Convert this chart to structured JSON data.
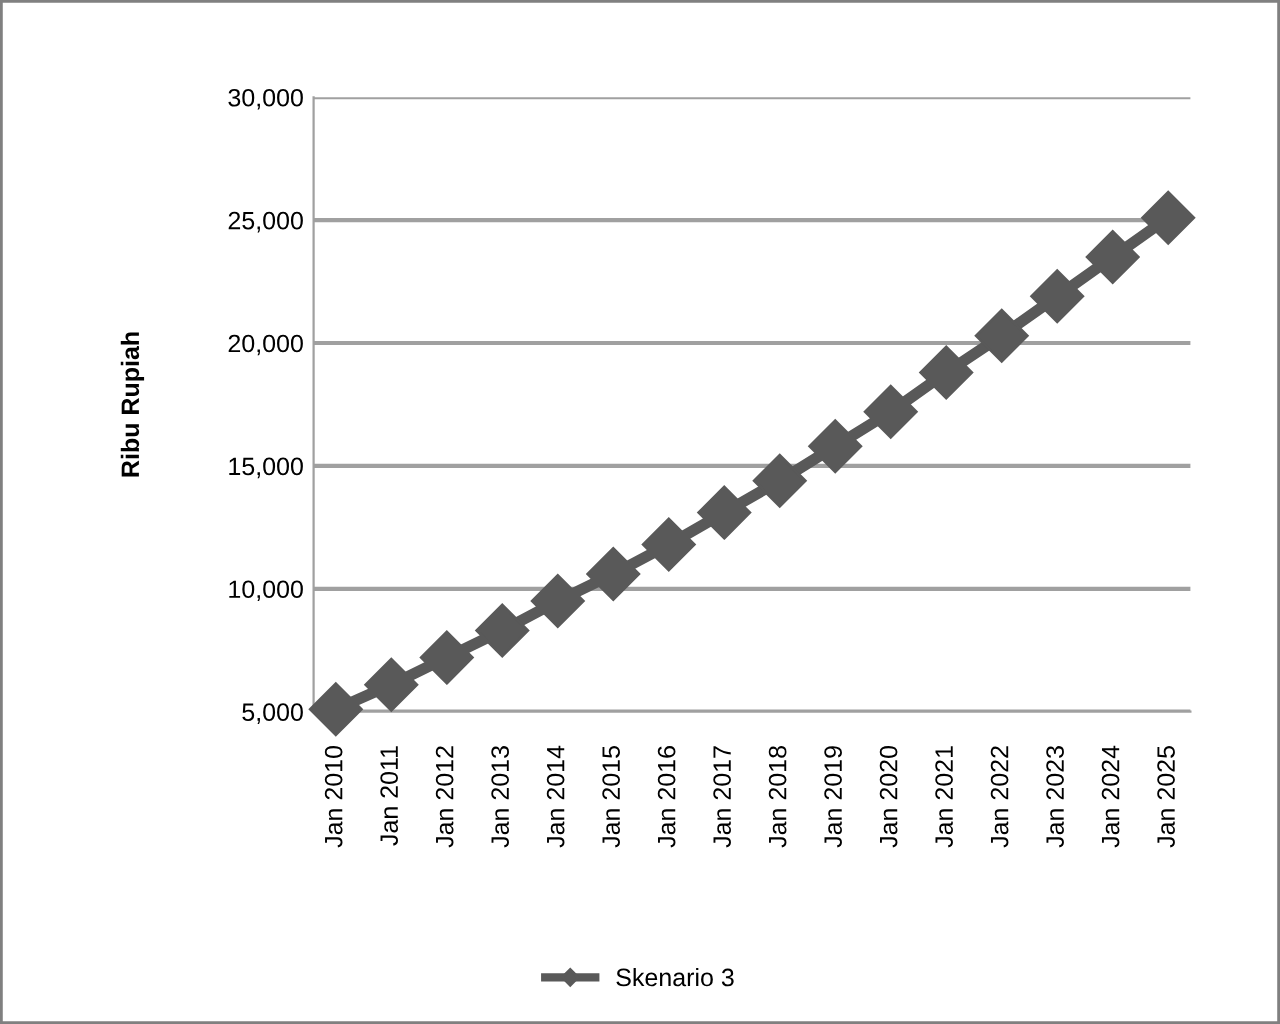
{
  "chart_data": {
    "type": "line",
    "ylabel": "Ribu Rupiah",
    "categories": [
      "Jan 2010",
      "Jan 2011",
      "Jan 2012",
      "Jan 2013",
      "Jan 2014",
      "Jan 2015",
      "Jan 2016",
      "Jan 2017",
      "Jan 2018",
      "Jan 2019",
      "Jan 2020",
      "Jan 2021",
      "Jan 2022",
      "Jan 2023",
      "Jan 2024",
      "Jan 2025"
    ],
    "series": [
      {
        "name": "Skenario 3",
        "color": "#595959",
        "values": [
          5100,
          6100,
          7200,
          8300,
          9500,
          10600,
          11800,
          13100,
          14400,
          15800,
          17200,
          18800,
          20300,
          21900,
          23500,
          25100
        ]
      }
    ],
    "ylim": [
      5000,
      30000
    ],
    "yticks": [
      {
        "value": 5000,
        "label": "5,000"
      },
      {
        "value": 10000,
        "label": "10,000"
      },
      {
        "value": 15000,
        "label": "15,000"
      },
      {
        "value": 20000,
        "label": "20,000"
      },
      {
        "value": 25000,
        "label": "25,000"
      },
      {
        "value": 30000,
        "label": "30,000"
      }
    ],
    "grid": "y",
    "legend": "bottom",
    "marker": "diamond",
    "line_style": "solid"
  }
}
